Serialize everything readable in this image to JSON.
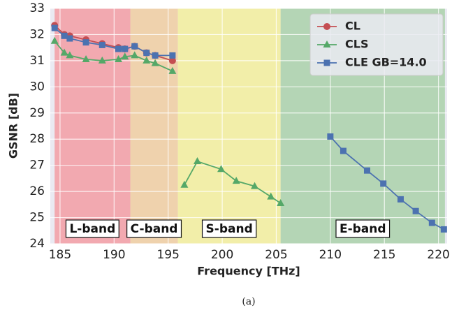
{
  "chart_data": {
    "type": "line",
    "caption": "(a)",
    "x_label": "Frequency [THz]",
    "y_label": "GSNR [dB]",
    "xlim": [
      184.1,
      220.8
    ],
    "ylim": [
      24,
      33
    ],
    "xticks": [
      185,
      190,
      195,
      200,
      205,
      210,
      215,
      220
    ],
    "yticks": [
      24,
      25,
      26,
      27,
      28,
      29,
      30,
      31,
      32,
      33
    ],
    "grid": true,
    "legend": "upper right",
    "bands": [
      {
        "label": "L-band",
        "range": [
          184.5,
          191.5
        ],
        "color": "#f2a9b0"
      },
      {
        "label": "C-band",
        "range": [
          191.5,
          195.9
        ],
        "color": "#efd2ad"
      },
      {
        "label": "S-band",
        "range": [
          195.9,
          205.4
        ],
        "color": "#f2eea9"
      },
      {
        "label": "E-band",
        "range": [
          205.4,
          220.6
        ],
        "color": "#b4d5b5"
      }
    ],
    "series": [
      {
        "name": "CL",
        "color": "#c44e52",
        "marker": "circle",
        "x": [
          184.5,
          185.4,
          185.9,
          187.4,
          188.9,
          190.4,
          191.0,
          191.9,
          193.0,
          193.8,
          195.4
        ],
        "values": [
          32.35,
          32.0,
          31.95,
          31.8,
          31.65,
          31.5,
          31.45,
          31.55,
          31.3,
          31.2,
          31.0
        ]
      },
      {
        "name": "CLS",
        "color": "#55a868",
        "marker": "triangle",
        "x": [
          184.5,
          185.4,
          185.9,
          187.4,
          188.9,
          190.4,
          191.0,
          191.9,
          193.0,
          193.8,
          195.4,
          null,
          196.5,
          197.7,
          199.9,
          201.3,
          203.0,
          204.5,
          205.4
        ],
        "values": [
          31.75,
          31.3,
          31.2,
          31.05,
          31.0,
          31.05,
          31.15,
          31.2,
          31.0,
          30.9,
          30.6,
          null,
          26.25,
          27.15,
          26.85,
          26.4,
          26.2,
          25.8,
          25.55
        ]
      },
      {
        "name": "CLE GB=14.0",
        "color": "#4c72b0",
        "marker": "square",
        "x": [
          184.5,
          185.4,
          185.9,
          187.4,
          188.9,
          190.4,
          191.0,
          191.9,
          193.0,
          193.8,
          195.4,
          null,
          210.0,
          211.2,
          213.4,
          214.9,
          216.5,
          217.9,
          219.4,
          220.5
        ],
        "values": [
          32.25,
          31.95,
          31.85,
          31.7,
          31.6,
          31.45,
          31.45,
          31.55,
          31.3,
          31.2,
          31.2,
          null,
          28.1,
          27.55,
          26.8,
          26.3,
          25.7,
          25.25,
          24.8,
          24.55
        ]
      }
    ]
  }
}
